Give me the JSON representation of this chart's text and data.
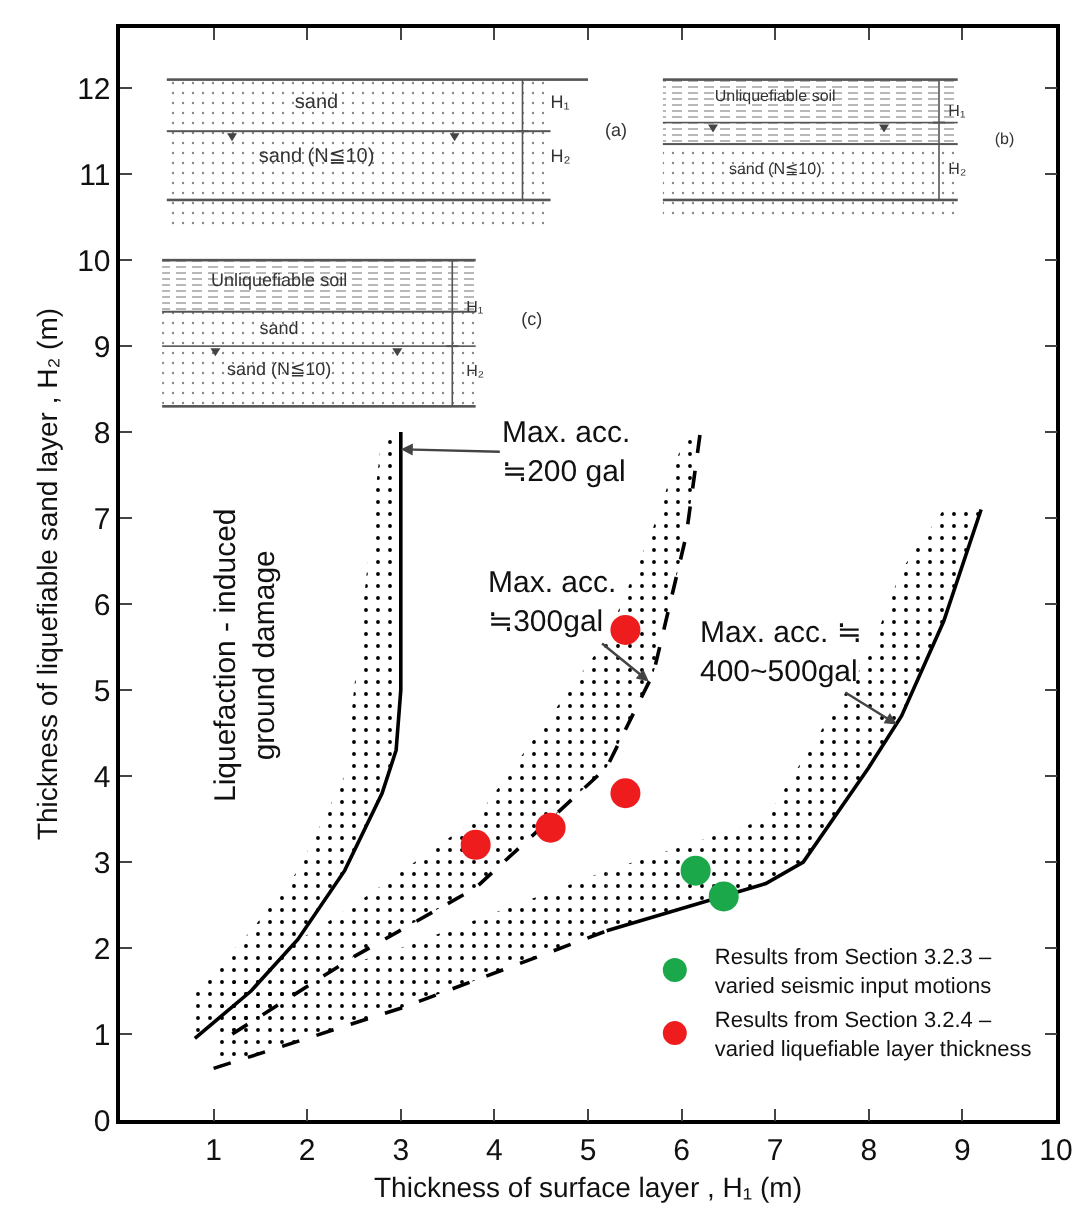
{
  "chart_data": {
    "type": "line",
    "xlabel": "Thickness of surface layer , H₁ (m)",
    "ylabel": "Thickness of liquefiable sand layer , H₂ (m)",
    "xlim": [
      0,
      10
    ],
    "xticks": [
      1,
      2,
      3,
      4,
      5,
      6,
      7,
      8,
      9,
      10
    ],
    "ylim": [
      0,
      12.7
    ],
    "yticks": [
      0,
      1,
      2,
      3,
      4,
      5,
      6,
      7,
      8,
      9,
      10,
      11,
      12
    ],
    "grid": false,
    "legend": "bottom right",
    "series": [
      {
        "type": "line",
        "color": "#000000",
        "line_style": "solid",
        "marker": "none",
        "x": [
          0.8,
          1.4,
          1.9,
          2.4,
          2.8,
          2.95,
          3.0,
          3.0
        ],
        "values": [
          0.95,
          1.5,
          2.1,
          2.9,
          3.8,
          4.3,
          5.0,
          8.0
        ],
        "lower": [
          0.95,
          1.5,
          2.1,
          2.9,
          3.8,
          4.3,
          5.0,
          8.0
        ],
        "upper": [
          1.5,
          2.2,
          2.9,
          4.0,
          8.0,
          8.0,
          8.0,
          8.0
        ]
      },
      {
        "type": "line",
        "color": "#000000",
        "line_style": "dashed",
        "marker": "none",
        "x": [
          1.2,
          2.5,
          3.8,
          5.2,
          5.7,
          6.05,
          6.2
        ],
        "values": [
          1.0,
          1.9,
          2.7,
          4.1,
          5.2,
          6.8,
          8.0
        ],
        "lower": [
          1.0,
          1.9,
          2.7,
          4.1,
          5.2,
          6.8,
          8.0
        ],
        "upper": [
          1.6,
          2.5,
          3.5,
          5.6,
          6.9,
          8.0,
          8.0
        ]
      },
      {
        "type": "line",
        "color": "#000000",
        "line_style": "dashed",
        "marker": "none",
        "x": [
          1.0,
          3.0,
          5.2
        ],
        "values": [
          0.6,
          1.3,
          2.2
        ],
        "lower": [
          0.6,
          1.3,
          2.2
        ],
        "upper": [
          1.3,
          2.0,
          2.9
        ]
      },
      {
        "type": "line",
        "color": "#000000",
        "line_style": "solid",
        "marker": "none",
        "x": [
          5.2,
          6.9,
          7.3,
          8.0,
          8.35,
          8.8,
          9.2
        ],
        "values": [
          2.2,
          2.75,
          3.0,
          4.1,
          4.7,
          5.8,
          7.1
        ],
        "lower": [
          2.2,
          2.75,
          3.0,
          4.1,
          4.7,
          5.8,
          7.1
        ],
        "upper": [
          2.9,
          3.5,
          4.2,
          5.4,
          6.4,
          7.1,
          7.1
        ]
      },
      {
        "type": "scatter",
        "name": "Results from Section 3.2.3 –\nvaried seismic input motions",
        "color": "#1aa84a",
        "marker": "circle",
        "x": [
          6.15,
          6.45
        ],
        "values": [
          2.9,
          2.6
        ]
      },
      {
        "type": "scatter",
        "name": "Results from Section 3.2.4 –\nvaried liquefiable layer thickness",
        "color": "#ee1c1c",
        "marker": "circle",
        "x": [
          3.8,
          4.6,
          5.4,
          5.4
        ],
        "values": [
          3.2,
          3.4,
          3.8,
          5.7
        ]
      }
    ],
    "annotations": [
      {
        "text": "Max. acc.\n≒200 gal",
        "x": 3.0,
        "y": 7.8
      },
      {
        "text": "Max. acc.\n≒300gal",
        "x": 5.65,
        "y": 5.1
      },
      {
        "text": "Max. acc. ≒\n400~500gal",
        "x": 8.3,
        "y": 4.6
      },
      "Liquefaction - induced\nground damage",
      "sand",
      "H₁",
      "sand (N≦10)",
      "H₂",
      "(a)",
      "Unliquefiable soil",
      "H₁",
      "sand (N≦10)",
      "H₂",
      "(b)",
      "Unliquefiable soil",
      "H₁",
      "sand",
      "sand (N≦10)",
      "H₂",
      "(c)"
    ]
  }
}
